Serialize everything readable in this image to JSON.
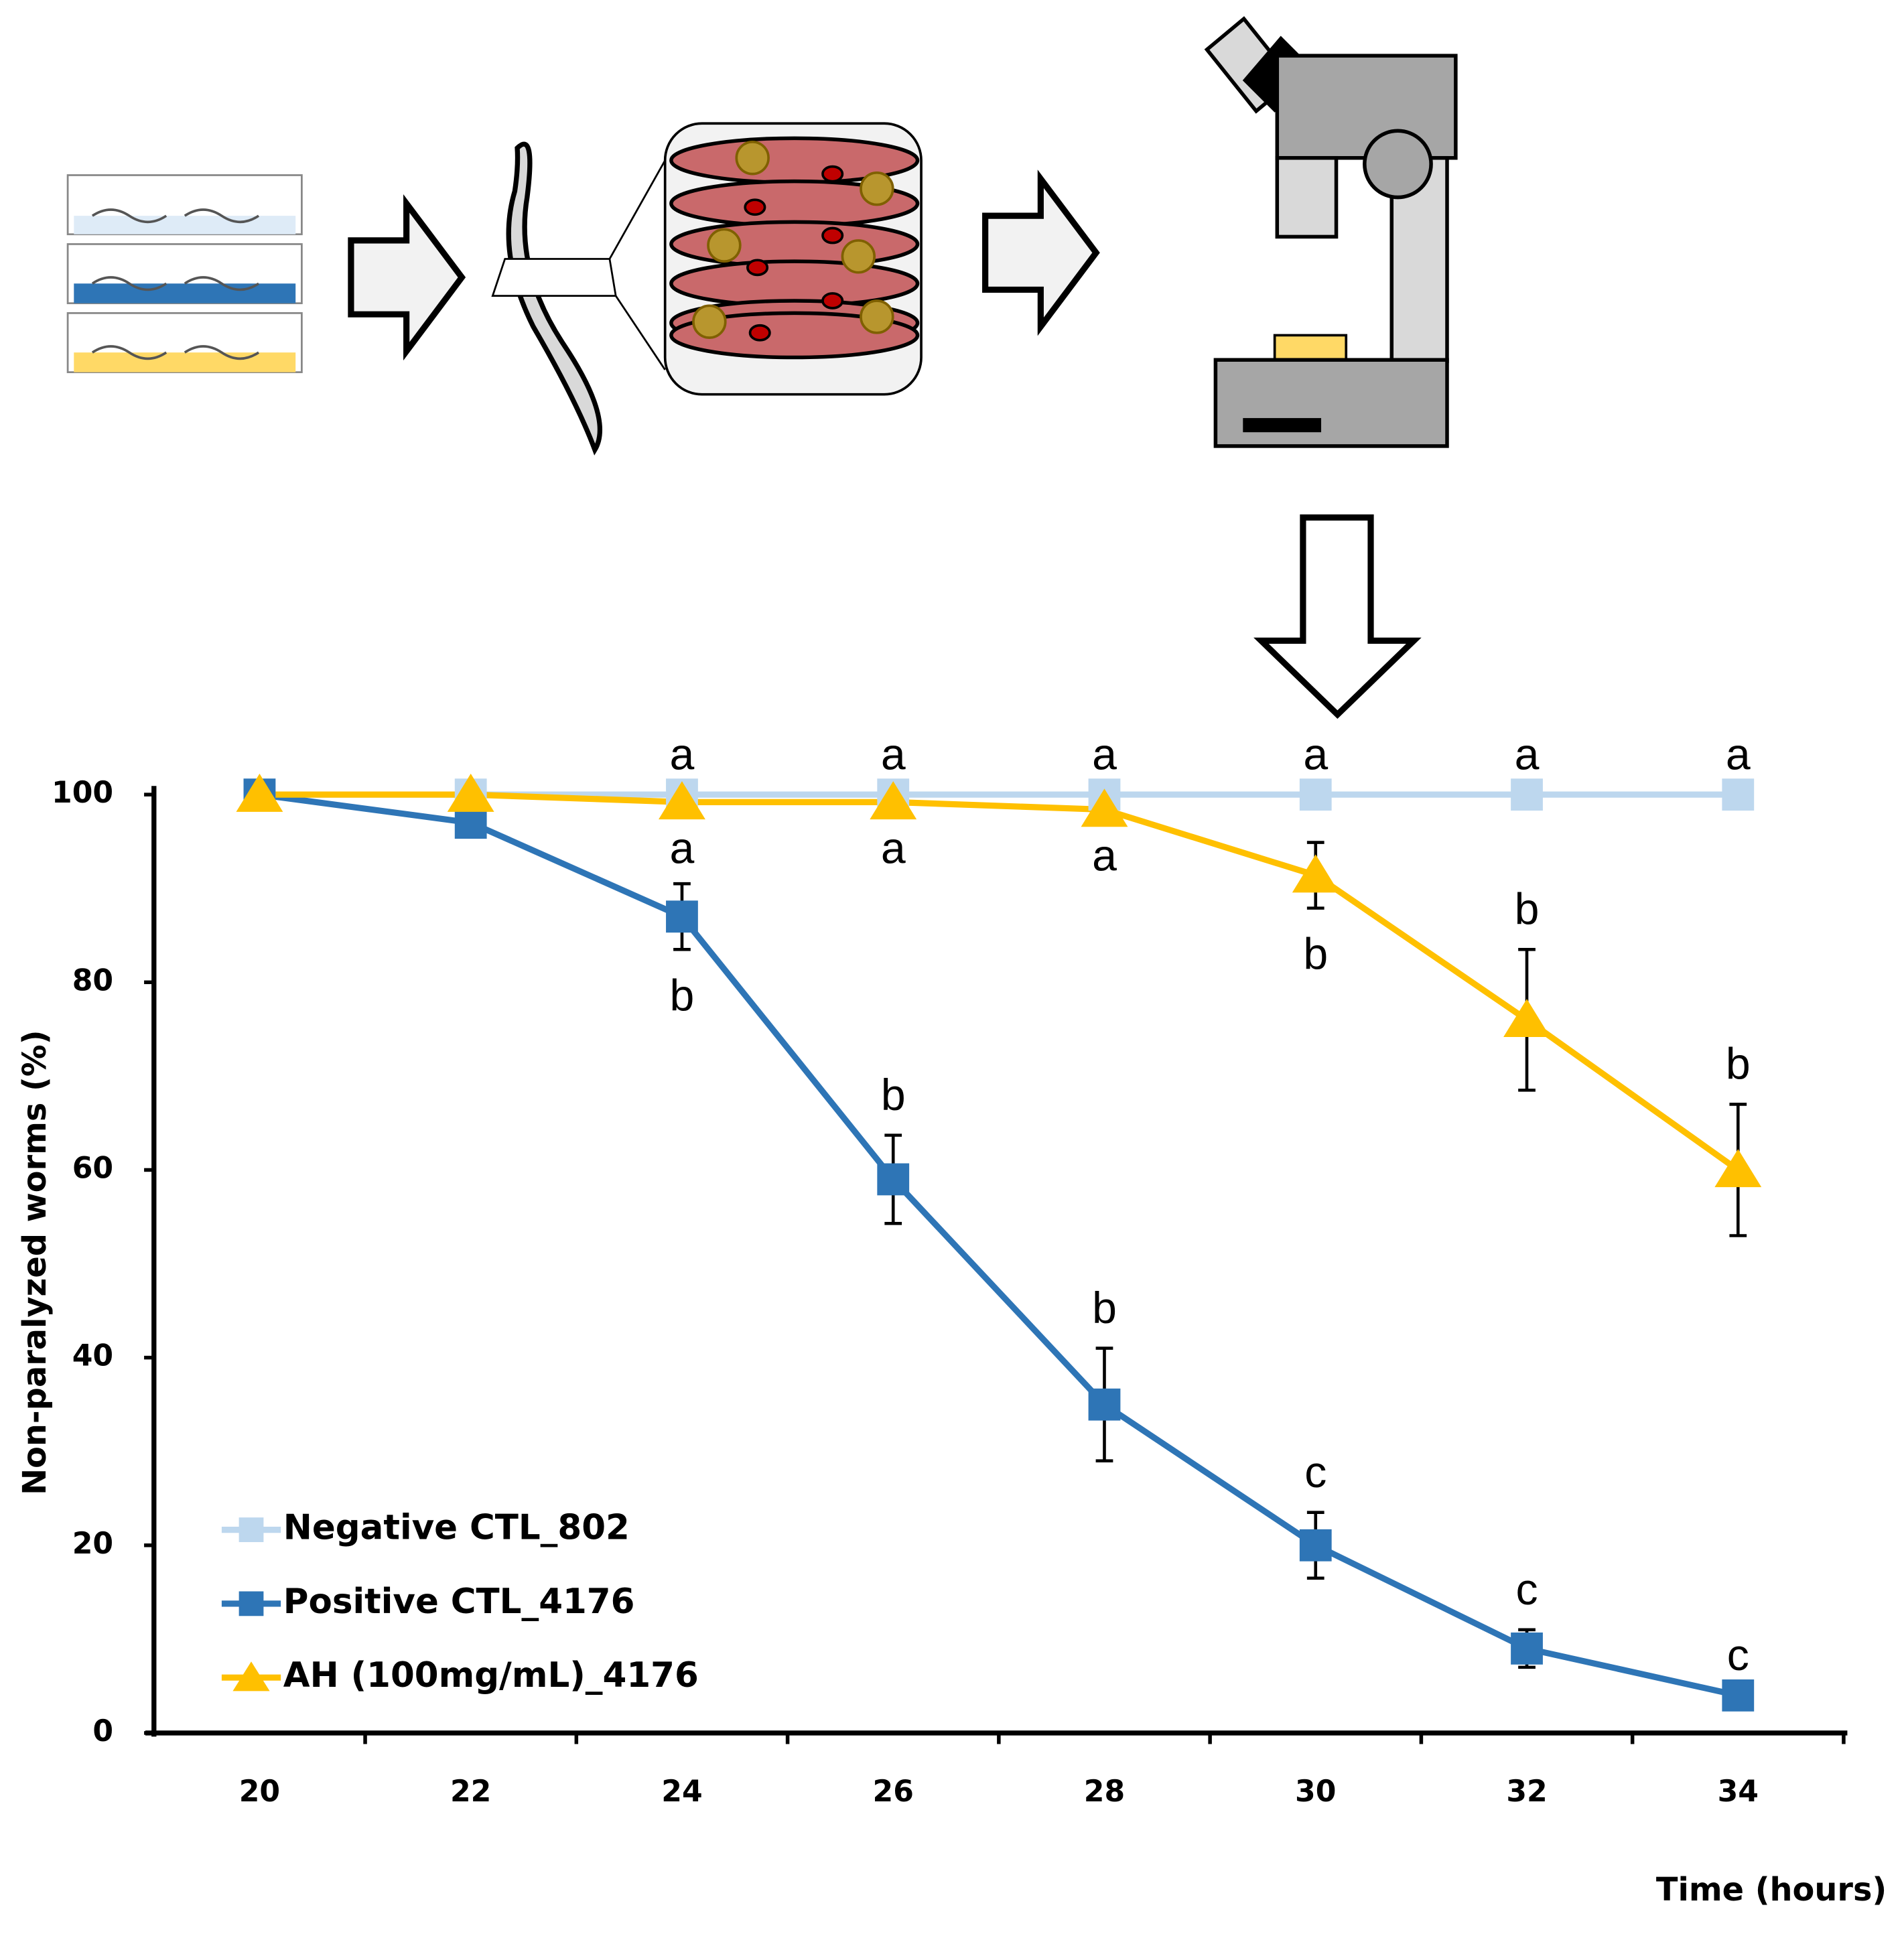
{
  "chart_data": {
    "type": "line",
    "categories": [
      "20",
      "22",
      "24",
      "26",
      "28",
      "30",
      "32",
      "34"
    ],
    "ylabel": "Non-paralyzed worms (%)",
    "xlabel": "Time (hours)",
    "ylim": [
      0,
      100
    ],
    "yticks": [
      0,
      20,
      40,
      60,
      80,
      100
    ],
    "legend": "lower left",
    "series": [
      {
        "name": "Negative CTL_802",
        "color": "#bdd7ee",
        "marker": "square",
        "values": [
          100,
          100,
          100,
          100,
          100,
          100,
          100,
          100
        ],
        "labels": [
          null,
          null,
          "a",
          "a",
          "a",
          "a",
          "a",
          "a"
        ]
      },
      {
        "name": "Positive CTL_4176",
        "color": "#2e75b6",
        "marker": "square",
        "values": [
          100,
          97,
          87,
          59,
          35,
          20,
          9,
          4
        ],
        "errors": [
          0,
          0,
          3.5,
          4.7,
          6,
          3.5,
          2,
          0
        ],
        "labels": [
          null,
          null,
          "b",
          "b",
          "b",
          "c",
          "c",
          "c"
        ]
      },
      {
        "name": "AH (100mg/mL)_4176",
        "color": "#ffc000",
        "marker": "triangle",
        "values": [
          100,
          100,
          99.2,
          99.2,
          98.4,
          91.4,
          76,
          60
        ],
        "errors": [
          0,
          0,
          0,
          0,
          0,
          3.5,
          7.5,
          7
        ],
        "labels": [
          null,
          null,
          "a",
          "a",
          "a",
          "b",
          "b",
          "b"
        ]
      }
    ]
  }
}
